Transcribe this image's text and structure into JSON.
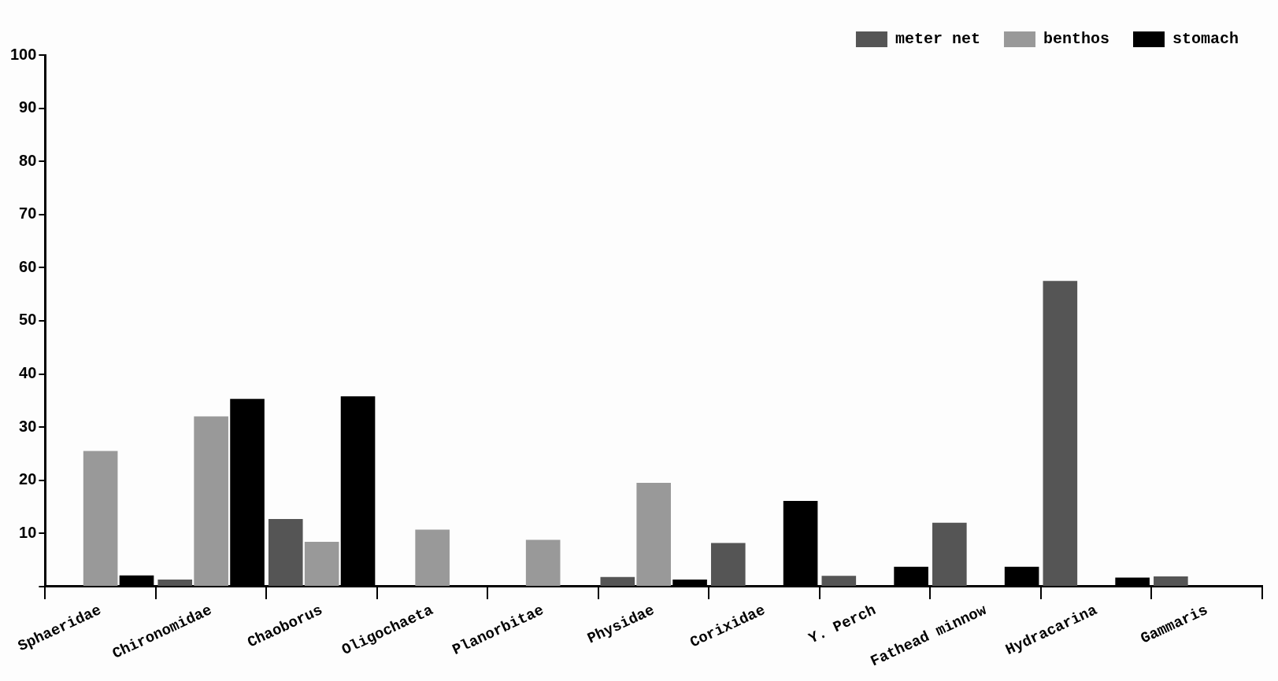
{
  "chart_data": {
    "type": "bar",
    "categories": [
      "Sphaeridae",
      "Chironomidae",
      "Chaoborus",
      "Oligochaeta",
      "Planorbitae",
      "Physidae",
      "Corixidae",
      "Y. Perch",
      "Fathead minnow",
      "Hydracarina",
      "Gammaris"
    ],
    "series": [
      {
        "name": "meter net",
        "color": "#555555",
        "values": [
          null,
          1.3,
          12.7,
          null,
          null,
          1.8,
          8.2,
          2,
          12,
          57.5,
          1.9
        ]
      },
      {
        "name": "benthos",
        "color": "#999999",
        "values": [
          25.5,
          32,
          8.4,
          10.7,
          8.8,
          19.5,
          null,
          null,
          null,
          null,
          null
        ]
      },
      {
        "name": "stomach",
        "color": "#000000",
        "values": [
          2.1,
          35.3,
          35.8,
          null,
          null,
          1.3,
          16.1,
          3.7,
          3.7,
          1.7,
          null
        ]
      }
    ],
    "ylim": [
      0,
      100
    ],
    "yticks": [
      {
        "value": 0,
        "label": null
      },
      10,
      20,
      30,
      40,
      50,
      60,
      70,
      80,
      90,
      100
    ],
    "grid": false,
    "legend": "top right"
  }
}
